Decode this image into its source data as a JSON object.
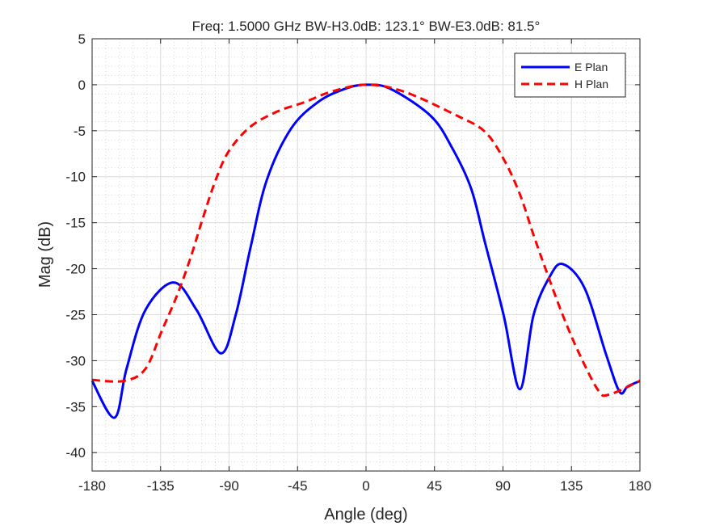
{
  "chart_data": {
    "type": "line",
    "title": "Freq: 1.5000 GHz    BW-H3.0dB: 123.1°    BW-E3.0dB: 81.5°",
    "xlabel": "Angle (deg)",
    "ylabel": "Mag (dB)",
    "xlim": [
      -180,
      180
    ],
    "ylim": [
      -42,
      5
    ],
    "xticks": [
      -180,
      -135,
      -90,
      -45,
      0,
      45,
      90,
      135,
      180
    ],
    "yticks": [
      5,
      0,
      -5,
      -10,
      -15,
      -20,
      -25,
      -30,
      -35,
      -40
    ],
    "grid": "major and minor",
    "legend_position": "top-right",
    "series": [
      {
        "name": "E Plan",
        "color": "#0000ff",
        "style": "solid",
        "x": [
          -180,
          -165.3,
          -157.4,
          -145,
          -126.4,
          -111.3,
          -95.4,
          -85.6,
          -75.9,
          -65.3,
          -49.4,
          -31.7,
          -14,
          0,
          16.1,
          42.6,
          56.7,
          69.1,
          78.1,
          90.5,
          101.1,
          110,
          120.6,
          129.4,
          143.6,
          157.9,
          166.7,
          172,
          180
        ],
        "y": [
          -32.2,
          -36.2,
          -30.9,
          -24.5,
          -21.5,
          -24.5,
          -29.2,
          -25,
          -17.7,
          -10.4,
          -4.8,
          -1.9,
          -0.45,
          0,
          -0.45,
          -3.4,
          -6.9,
          -11.3,
          -17.1,
          -25.1,
          -33.1,
          -25.1,
          -20.9,
          -19.5,
          -22.1,
          -29.4,
          -33.4,
          -32.8,
          -32.2
        ]
      },
      {
        "name": "H Plan",
        "color": "#ff0000",
        "style": "dashed",
        "x": [
          -180,
          -159,
          -145,
          -134.3,
          -123.7,
          -114.9,
          -107.8,
          -98.9,
          -90.1,
          -75.9,
          -58.2,
          -40.5,
          -22.8,
          0,
          25,
          60.3,
          78.1,
          90.5,
          101.1,
          110,
          118.8,
          129.4,
          140,
          152.5,
          159.6,
          180
        ],
        "y": [
          -32.1,
          -32.2,
          -30.9,
          -26.8,
          -22.7,
          -18.6,
          -14.8,
          -10.4,
          -7.2,
          -4.55,
          -2.9,
          -1.9,
          -0.75,
          0,
          -0.75,
          -3.4,
          -5.1,
          -8.1,
          -11.9,
          -16.3,
          -20.4,
          -25.1,
          -29.2,
          -33.2,
          -33.7,
          -32.2
        ]
      }
    ]
  }
}
